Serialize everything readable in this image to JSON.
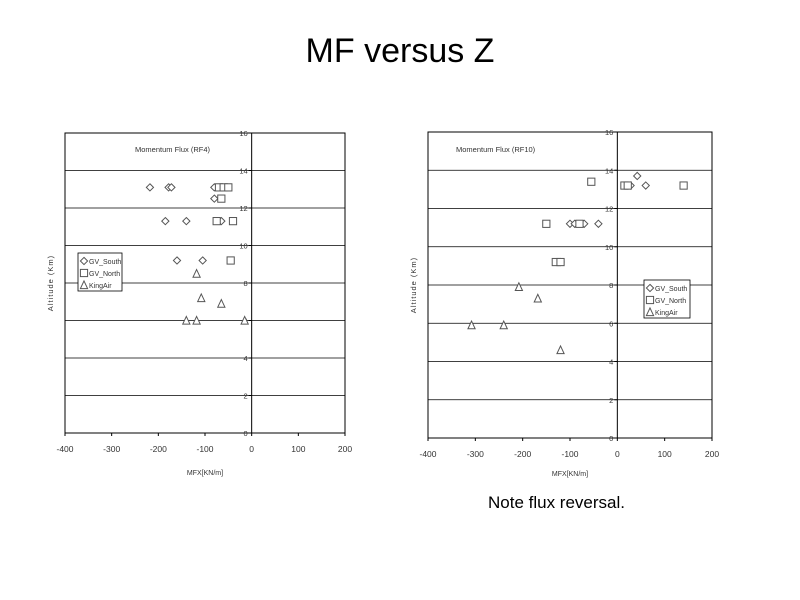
{
  "slide": {
    "title": "MF versus Z",
    "note": "Note flux reversal."
  },
  "chart_data": [
    {
      "type": "scatter",
      "title": "Momentum Flux (RF4)",
      "xlabel": "MFX[KN/m]",
      "ylabel": "Altitude (Km)",
      "xlim": [
        -400,
        200
      ],
      "ylim": [
        0,
        16
      ],
      "xticks": [
        -400,
        -300,
        -200,
        -100,
        0,
        100,
        200
      ],
      "yticks": [
        0,
        2,
        4,
        6,
        8,
        10,
        12,
        14,
        16
      ],
      "grid": true,
      "legend_position": "left",
      "series": [
        {
          "name": "GV_South",
          "marker": "diamond",
          "points": [
            [
              -218,
              13.1
            ],
            [
              -178,
              13.1
            ],
            [
              -172,
              13.1
            ],
            [
              -80,
              13.1
            ],
            [
              -80,
              12.5
            ],
            [
              -185,
              11.3
            ],
            [
              -140,
              11.3
            ],
            [
              -65,
              11.3
            ],
            [
              -160,
              9.2
            ],
            [
              -105,
              9.2
            ]
          ]
        },
        {
          "name": "GV_North",
          "marker": "square",
          "points": [
            [
              -70,
              13.1
            ],
            [
              -60,
              13.1
            ],
            [
              -50,
              13.1
            ],
            [
              -65,
              12.5
            ],
            [
              -75,
              11.3
            ],
            [
              -40,
              11.3
            ],
            [
              -45,
              9.2
            ]
          ]
        },
        {
          "name": "KingAir",
          "marker": "triangle",
          "points": [
            [
              -118,
              8.5
            ],
            [
              -108,
              7.2
            ],
            [
              -65,
              6.9
            ],
            [
              -140,
              6.0
            ],
            [
              -118,
              6.0
            ],
            [
              -15,
              6.0
            ]
          ]
        }
      ]
    },
    {
      "type": "scatter",
      "title": "Momentum Flux (RF10)",
      "xlabel": "MFX[KN/m]",
      "ylabel": "Altitude (Km)",
      "xlim": [
        -400,
        200
      ],
      "ylim": [
        0,
        16
      ],
      "xticks": [
        -400,
        -300,
        -200,
        -100,
        0,
        100,
        200
      ],
      "yticks": [
        0,
        2,
        4,
        6,
        8,
        10,
        12,
        14,
        16
      ],
      "grid": true,
      "legend_position": "right",
      "series": [
        {
          "name": "GV_South",
          "marker": "diamond",
          "points": [
            [
              42,
              13.7
            ],
            [
              28,
              13.2
            ],
            [
              60,
              13.2
            ],
            [
              -100,
              11.2
            ],
            [
              -90,
              11.2
            ],
            [
              -70,
              11.2
            ],
            [
              -40,
              11.2
            ],
            [
              -120,
              9.2
            ]
          ]
        },
        {
          "name": "GV_North",
          "marker": "square",
          "points": [
            [
              -55,
              13.4
            ],
            [
              15,
              13.2
            ],
            [
              22,
              13.2
            ],
            [
              140,
              13.2
            ],
            [
              -150,
              11.2
            ],
            [
              -80,
              11.2
            ],
            [
              -130,
              9.2
            ],
            [
              -120,
              9.2
            ]
          ]
        },
        {
          "name": "KingAir",
          "marker": "triangle",
          "points": [
            [
              -208,
              7.9
            ],
            [
              -168,
              7.3
            ],
            [
              -308,
              5.9
            ],
            [
              -240,
              5.9
            ],
            [
              -120,
              4.6
            ]
          ]
        }
      ]
    }
  ]
}
